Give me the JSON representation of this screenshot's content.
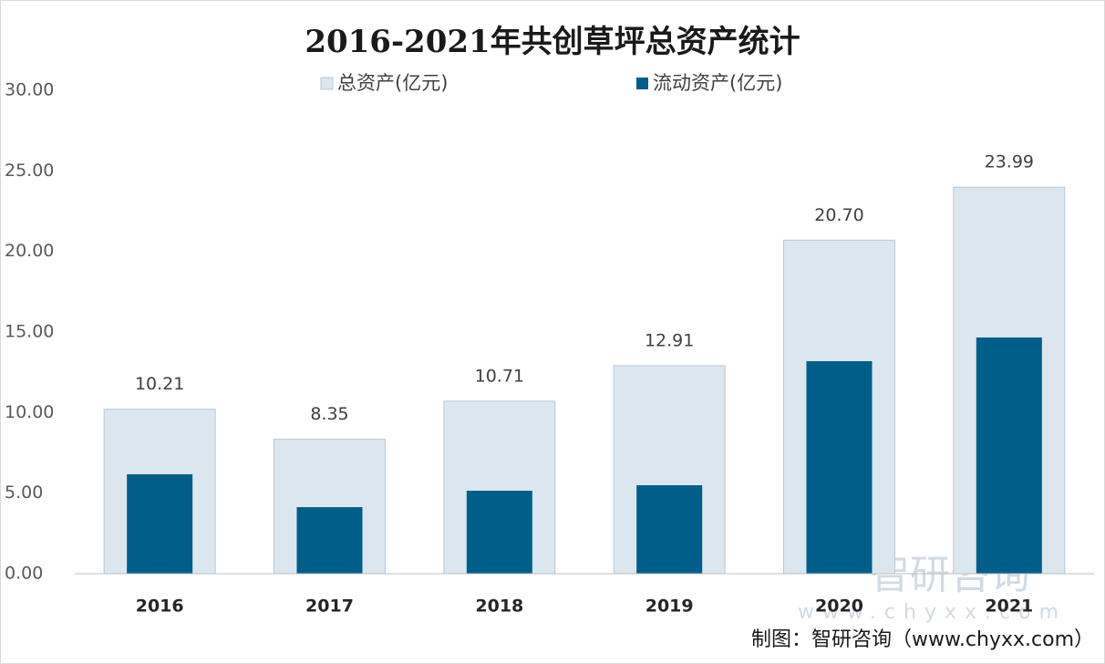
{
  "chart_data": {
    "type": "overlap-bar",
    "title": "2016-2021年共创草坪总资产统计",
    "categories": [
      "2016",
      "2017",
      "2018",
      "2019",
      "2020",
      "2021"
    ],
    "series": [
      {
        "name": "总资产(亿元)",
        "color": "#dce6ee",
        "values": [
          10.21,
          8.35,
          10.71,
          12.91,
          20.7,
          23.99
        ],
        "value_labels": [
          "10.21",
          "8.35",
          "10.71",
          "12.91",
          "20.70",
          "23.99"
        ]
      },
      {
        "name": "流动资产(亿元)",
        "color": "#005f8a",
        "values": [
          6.17,
          4.13,
          5.15,
          5.49,
          13.19,
          14.66
        ]
      }
    ],
    "ylim": [
      0,
      30
    ],
    "yticks": [
      {
        "value": 0,
        "label": "0.00"
      },
      {
        "value": 5,
        "label": "5.00"
      },
      {
        "value": 10,
        "label": "10.00"
      },
      {
        "value": 15,
        "label": "15.00"
      },
      {
        "value": 20,
        "label": "20.00"
      },
      {
        "value": 25,
        "label": "25.00"
      },
      {
        "value": 30,
        "label": "30.00"
      }
    ],
    "grid": false,
    "watermark": "智研咨询",
    "watermark_url": "www.chyxx.com",
    "source": "制图：智研咨询（www.chyxx.com）"
  }
}
